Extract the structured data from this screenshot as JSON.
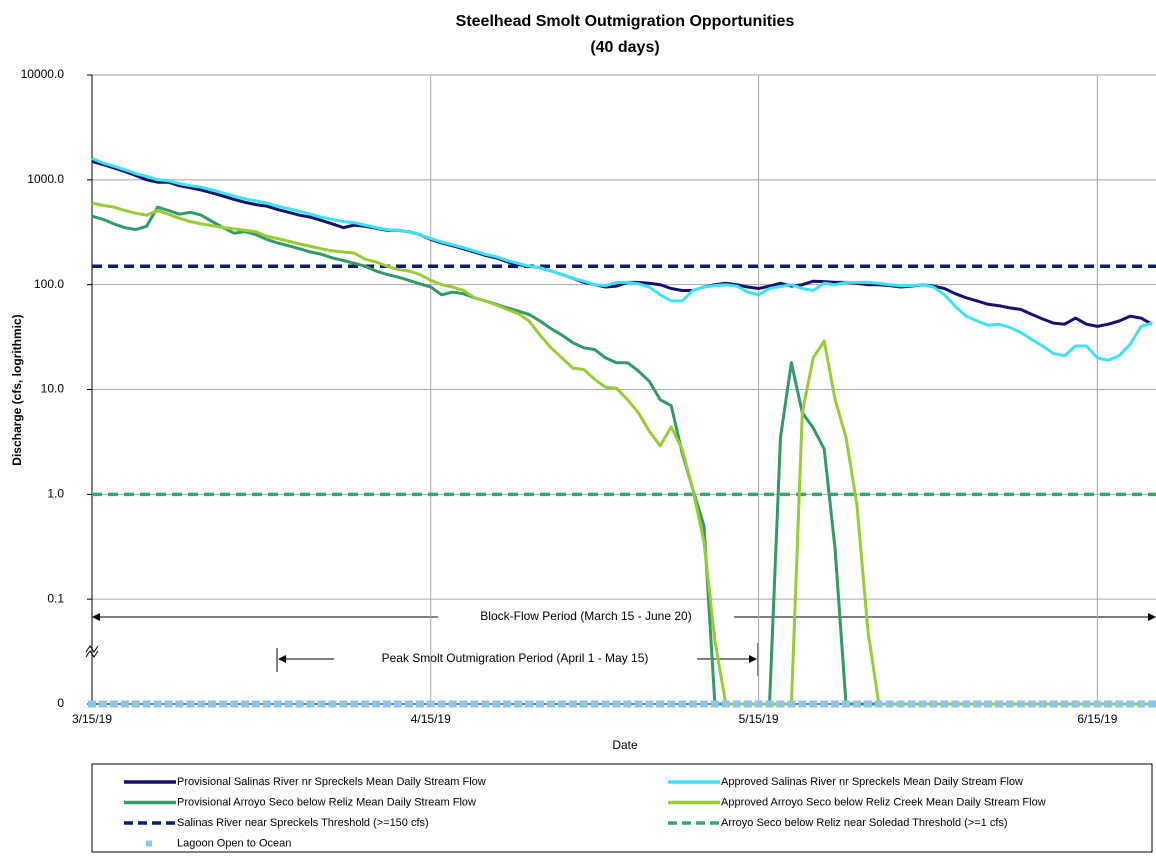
{
  "chart_data": {
    "type": "line",
    "title": "Steelhead Smolt Outmigration Opportunities",
    "subtitle": "(40 days)",
    "x_label": "Date",
    "y_label": "Discharge (cfs, logrithmic)",
    "log_y": true,
    "grid": true,
    "legend": "bottom",
    "annotations": [
      "Block-Flow Period (March 15 - June 20)",
      "Peak Smolt Outmigration Period (April 1 - May 15)"
    ],
    "xlim": [
      "3/15/19",
      "6/20/19"
    ],
    "xticks": [
      "3/15/19",
      "4/15/19",
      "5/15/19",
      "6/15/19"
    ],
    "ylim": [
      0.01,
      10000
    ],
    "yticks": [
      0,
      0.1,
      {
        "value": 1,
        "label": "1.0"
      },
      {
        "value": 10,
        "label": "10.0"
      },
      {
        "value": 100,
        "label": "100.0"
      },
      {
        "value": 1000,
        "label": "1000.0"
      },
      {
        "value": 10000,
        "label": "10000.0"
      }
    ],
    "x": [
      "3/15/19",
      "3/16/19",
      "3/17/19",
      "3/18/19",
      "3/19/19",
      "3/20/19",
      "3/21/19",
      "3/22/19",
      "3/23/19",
      "3/24/19",
      "3/25/19",
      "3/26/19",
      "3/27/19",
      "3/28/19",
      "3/29/19",
      "3/30/19",
      "3/31/19",
      "4/1/19",
      "4/2/19",
      "4/3/19",
      "4/4/19",
      "4/5/19",
      "4/6/19",
      "4/7/19",
      "4/8/19",
      "4/9/19",
      "4/10/19",
      "4/11/19",
      "4/12/19",
      "4/13/19",
      "4/14/19",
      "4/15/19",
      "4/16/19",
      "4/17/19",
      "4/18/19",
      "4/19/19",
      "4/20/19",
      "4/21/19",
      "4/22/19",
      "4/23/19",
      "4/24/19",
      "4/25/19",
      "4/26/19",
      "4/27/19",
      "4/28/19",
      "4/29/19",
      "4/30/19",
      "5/1/19",
      "5/2/19",
      "5/3/19",
      "5/4/19",
      "5/5/19",
      "5/6/19",
      "5/7/19",
      "5/8/19",
      "5/9/19",
      "5/10/19",
      "5/11/19",
      "5/12/19",
      "5/13/19",
      "5/14/19",
      "5/15/19",
      "5/16/19",
      "5/17/19",
      "5/18/19",
      "5/19/19",
      "5/20/19",
      "5/21/19",
      "5/22/19",
      "5/23/19",
      "5/24/19",
      "5/25/19",
      "5/26/19",
      "5/27/19",
      "5/28/19",
      "5/29/19",
      "5/30/19",
      "5/31/19",
      "6/1/19",
      "6/2/19",
      "6/3/19",
      "6/4/19",
      "6/5/19",
      "6/6/19",
      "6/7/19",
      "6/8/19",
      "6/9/19",
      "6/10/19",
      "6/11/19",
      "6/12/19",
      "6/13/19",
      "6/14/19",
      "6/15/19",
      "6/16/19",
      "6/17/19",
      "6/18/19",
      "6/19/19",
      "6/20/19"
    ],
    "series": [
      {
        "name": "Provisional Salinas River nr Spreckels Mean Daily Stream Flow",
        "color": "#141470",
        "values": [
          1500,
          1400,
          1300,
          1200,
          1100,
          1000,
          950,
          950,
          880,
          840,
          800,
          750,
          700,
          650,
          610,
          580,
          560,
          520,
          490,
          460,
          440,
          410,
          380,
          350,
          370,
          360,
          345,
          330,
          330,
          320,
          300,
          270,
          250,
          235,
          220,
          205,
          190,
          180,
          165,
          155,
          150,
          145,
          135,
          125,
          115,
          105,
          100,
          95,
          97,
          105,
          105,
          103,
          100,
          92,
          88,
          88,
          95,
          100,
          103,
          100,
          95,
          92,
          97,
          103,
          97,
          100,
          108,
          107,
          105,
          105,
          103,
          100,
          100,
          98,
          95,
          97,
          100,
          97,
          92,
          82,
          75,
          70,
          65,
          63,
          60,
          58,
          52,
          47,
          43,
          42,
          48,
          42,
          40,
          42,
          45,
          50,
          48,
          42
        ]
      },
      {
        "name": "Approved Salinas River nr Spreckels Mean Daily Stream Flow",
        "color": "#3ee3f2",
        "values": [
          1600,
          1450,
          1350,
          1250,
          1150,
          1080,
          1000,
          980,
          920,
          880,
          850,
          800,
          750,
          700,
          660,
          630,
          600,
          560,
          530,
          500,
          470,
          440,
          420,
          400,
          390,
          370,
          350,
          335,
          330,
          320,
          300,
          275,
          255,
          240,
          225,
          210,
          195,
          185,
          170,
          160,
          150,
          145,
          135,
          125,
          115,
          108,
          100,
          98,
          105,
          105,
          102,
          95,
          80,
          70,
          70,
          88,
          95,
          98,
          100,
          97,
          85,
          80,
          92,
          96,
          100,
          92,
          88,
          103,
          100,
          105,
          105,
          105,
          103,
          100,
          98,
          98,
          100,
          95,
          80,
          62,
          50,
          45,
          41,
          42,
          39,
          35,
          30,
          26,
          22,
          21,
          26,
          26,
          20,
          19,
          21,
          27,
          40,
          43
        ]
      },
      {
        "name": "Provisional Arroyo Seco below Reliz Mean Daily Stream Flow",
        "color": "#339966",
        "values": [
          450,
          420,
          380,
          350,
          335,
          360,
          550,
          510,
          470,
          490,
          460,
          400,
          350,
          310,
          320,
          300,
          270,
          250,
          235,
          220,
          205,
          195,
          180,
          170,
          160,
          150,
          135,
          125,
          118,
          110,
          102,
          95,
          80,
          85,
          82,
          75,
          70,
          65,
          60,
          56,
          52,
          45,
          38,
          33,
          28,
          25,
          24,
          20,
          18,
          18,
          15,
          12,
          8,
          7,
          2.5,
          1.1,
          0.5,
          0,
          0,
          0,
          0,
          0,
          0,
          3.5,
          18,
          6,
          4.3,
          2.7,
          0.3,
          0,
          0,
          0,
          0,
          0,
          0,
          0,
          0,
          0,
          0,
          0,
          0,
          0,
          0,
          0,
          0,
          0,
          0,
          0,
          0,
          0,
          0,
          0,
          0,
          0,
          0,
          0,
          0,
          0
        ]
      },
      {
        "name": "Approved Arroyo Seco below Reliz Creek Mean Daily Stream Flow",
        "color": "#99cc33",
        "values": [
          600,
          570,
          550,
          510,
          480,
          460,
          510,
          470,
          430,
          400,
          380,
          365,
          350,
          340,
          330,
          320,
          290,
          275,
          260,
          245,
          232,
          220,
          210,
          205,
          200,
          175,
          165,
          150,
          140,
          135,
          125,
          110,
          100,
          95,
          88,
          75,
          70,
          64,
          58,
          53,
          45,
          33,
          25,
          20,
          16,
          15.5,
          12.5,
          10.5,
          10.3,
          8,
          6,
          4,
          2.9,
          4.4,
          2.7,
          1.1,
          0.35,
          0.04,
          0,
          0,
          0,
          0,
          0,
          0,
          0,
          6,
          20,
          29,
          8,
          3.5,
          0.8,
          0.05,
          0,
          0,
          0,
          0,
          0,
          0,
          0,
          0,
          0,
          0,
          0,
          0,
          0,
          0,
          0,
          0,
          0,
          0,
          0,
          0,
          0,
          0,
          0,
          0,
          0,
          0
        ]
      }
    ],
    "thresholds": [
      {
        "name": "Salinas River near Spreckels Threshold (>=150 cfs)",
        "color": "#0d1a70",
        "value": 150
      },
      {
        "name": "Arroyo Seco below Reliz near Soledad Threshold (>=1 cfs)",
        "color": "#3aa66b",
        "value": 1
      }
    ],
    "markers": {
      "name": "Lagoon Open to Ocean",
      "color": "#8cc4ec",
      "values": [
        0,
        0,
        0,
        0,
        0,
        0,
        0,
        0,
        0,
        0,
        0,
        0,
        0,
        0,
        0,
        0,
        0,
        0,
        0,
        0,
        0,
        0,
        0,
        0,
        0,
        0,
        0,
        0,
        0,
        0,
        0,
        0,
        0,
        0,
        0,
        0,
        0,
        0,
        0,
        0,
        0,
        0,
        0,
        0,
        0,
        0,
        0,
        0,
        0,
        0,
        0,
        0,
        0,
        0,
        0,
        0,
        0,
        0,
        0,
        0,
        0,
        0,
        0,
        0,
        0,
        0,
        0,
        0,
        0,
        0,
        0,
        0,
        0,
        0,
        0,
        0,
        0,
        0,
        0,
        0,
        0,
        0,
        0,
        0,
        0,
        0,
        0,
        0,
        0,
        0,
        0,
        0,
        0,
        0,
        0,
        0,
        0,
        0
      ]
    }
  }
}
